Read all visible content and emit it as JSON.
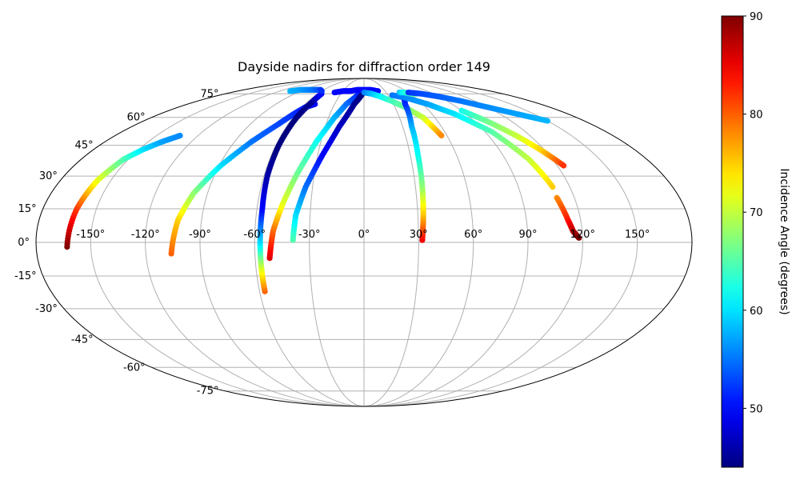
{
  "chart_data": {
    "type": "scatter",
    "title": "Dayside nadirs for diffraction order 149",
    "projection": "mollweide",
    "grid": true,
    "x_tick_labels": [
      "-150°",
      "-120°",
      "-90°",
      "-60°",
      "-30°",
      "0°",
      "30°",
      "60°",
      "90°",
      "120°",
      "150°"
    ],
    "x_tick_values": [
      -150,
      -120,
      -90,
      -60,
      -30,
      0,
      30,
      60,
      90,
      120,
      150
    ],
    "y_tick_labels": [
      "-75°",
      "-60°",
      "-45°",
      "-30°",
      "-15°",
      "0°",
      "15°",
      "30°",
      "45°",
      "60°",
      "75°"
    ],
    "y_tick_values": [
      -75,
      -60,
      -45,
      -30,
      -15,
      0,
      15,
      30,
      45,
      60,
      75
    ],
    "xlim": [
      -180,
      180
    ],
    "ylim": [
      -90,
      90
    ],
    "colorbar": {
      "label": "Incidence Angle (degrees)",
      "ticks": [
        50,
        60,
        70,
        80,
        90
      ],
      "tick_labels": [
        "50",
        "60",
        "70",
        "80",
        "90"
      ],
      "range": [
        44,
        90
      ],
      "colormap": "jet"
    },
    "series": [
      {
        "lon": [
          -163,
          -161,
          -158,
          -153,
          -147,
          -140,
          -133
        ],
        "lat": [
          -2,
          15,
          28,
          38,
          43,
          47,
          50
        ],
        "incidence": [
          90,
          82,
          72,
          65,
          60,
          57,
          56
        ]
      },
      {
        "lon": [
          -106,
          -103,
          -98,
          -89,
          -78,
          -68,
          -62,
          -57,
          -50
        ],
        "lat": [
          -5,
          10,
          22,
          35,
          47,
          56,
          62,
          66,
          68
        ],
        "incidence": [
          80,
          75,
          68,
          60,
          55,
          53,
          52,
          51,
          50
        ]
      },
      {
        "lon": [
          -57,
          -57,
          -57,
          -57,
          -58,
          -58,
          -57,
          -55,
          -55
        ],
        "lat": [
          -22,
          -10,
          0,
          15,
          30,
          45,
          60,
          70,
          75
        ],
        "incidence": [
          80,
          70,
          60,
          50,
          46,
          44,
          44,
          45,
          50
        ]
      },
      {
        "lon": [
          -52,
          -50,
          -46,
          -40,
          -33,
          -25,
          -18,
          -8,
          0
        ],
        "lat": [
          -7,
          5,
          17,
          32,
          47,
          60,
          68,
          74,
          76
        ],
        "incidence": [
          86,
          80,
          72,
          66,
          62,
          58,
          55,
          52,
          50
        ]
      },
      {
        "lon": [
          -39,
          -38,
          -34,
          -27,
          -19,
          -10,
          -2
        ],
        "lat": [
          1,
          12,
          25,
          40,
          55,
          68,
          75
        ],
        "incidence": [
          65,
          60,
          55,
          50,
          47,
          45,
          44
        ]
      },
      {
        "lon": [
          -40,
          -30,
          -20,
          -10,
          0,
          10,
          20
        ],
        "lat": [
          76,
          77,
          77,
          78,
          78,
          78,
          77
        ],
        "incidence": [
          50,
          50,
          50,
          50,
          50,
          50,
          50
        ]
      },
      {
        "lon": [
          0,
          10,
          20,
          30,
          40,
          50,
          56
        ],
        "lat": [
          76,
          75,
          73,
          70,
          66,
          60,
          50
        ],
        "incidence": [
          55,
          58,
          61,
          64,
          66,
          70,
          78
        ]
      },
      {
        "lon": [
          32,
          33,
          34,
          35,
          37,
          42,
          50
        ],
        "lat": [
          1,
          12,
          25,
          40,
          55,
          68,
          76
        ],
        "incidence": [
          85,
          76,
          68,
          62,
          58,
          52,
          50
        ]
      },
      {
        "lon": [
          35,
          50,
          65,
          80,
          95,
          105,
          110
        ],
        "lat": [
          74,
          72,
          68,
          62,
          52,
          38,
          25
        ],
        "incidence": [
          55,
          56,
          57,
          60,
          65,
          70,
          75
        ]
      },
      {
        "lon": [
          110,
          113,
          115,
          118
        ],
        "lat": [
          20,
          10,
          5,
          2
        ],
        "incidence": [
          78,
          83,
          87,
          90
        ]
      },
      {
        "lon": [
          48,
          55,
          62,
          68
        ],
        "lat": [
          76,
          76,
          75,
          75
        ],
        "incidence": [
          58,
          62,
          65,
          66
        ]
      },
      {
        "lon": [
          90,
          100,
          110,
          118,
          124
        ],
        "lat": [
          64,
          58,
          50,
          42,
          35
        ],
        "incidence": [
          62,
          66,
          70,
          75,
          82
        ]
      },
      {
        "lon": [
          -105,
          -95,
          -85,
          -75,
          -65,
          -60
        ],
        "lat": [
          77,
          78,
          78,
          78,
          78,
          77
        ],
        "incidence": [
          58,
          57,
          56,
          55,
          53,
          52
        ]
      },
      {
        "lon": [
          60,
          75,
          90,
          105,
          120,
          135,
          150
        ],
        "lat": [
          76,
          75,
          73,
          70,
          66,
          62,
          58
        ],
        "incidence": [
          52,
          53,
          54,
          55,
          56,
          57,
          58
        ]
      }
    ]
  }
}
